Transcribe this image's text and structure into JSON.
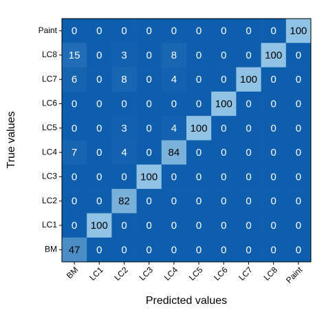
{
  "chart_data": {
    "type": "heatmap",
    "x_label": "Predicted values",
    "y_label": "True values",
    "x_categories": [
      "BM",
      "LC1",
      "LC2",
      "LC3",
      "LC4",
      "LC5",
      "LC6",
      "LC7",
      "LC8",
      "Paint"
    ],
    "y_categories": [
      "Paint",
      "LC8",
      "LC7",
      "LC6",
      "LC5",
      "LC4",
      "LC3",
      "LC2",
      "LC1",
      "BM"
    ],
    "values": [
      [
        0,
        0,
        0,
        0,
        0,
        0,
        0,
        0,
        0,
        100
      ],
      [
        15,
        0,
        3,
        0,
        8,
        0,
        0,
        0,
        100,
        0
      ],
      [
        6,
        0,
        8,
        0,
        4,
        0,
        0,
        100,
        0,
        0
      ],
      [
        0,
        0,
        0,
        0,
        0,
        0,
        100,
        0,
        0,
        0
      ],
      [
        0,
        0,
        3,
        0,
        4,
        100,
        0,
        0,
        0,
        0
      ],
      [
        7,
        0,
        4,
        0,
        84,
        0,
        0,
        0,
        0,
        0
      ],
      [
        0,
        0,
        0,
        100,
        0,
        0,
        0,
        0,
        0,
        0
      ],
      [
        0,
        0,
        82,
        0,
        0,
        0,
        0,
        0,
        0,
        0
      ],
      [
        0,
        100,
        0,
        0,
        0,
        0,
        0,
        0,
        0,
        0
      ],
      [
        47,
        0,
        0,
        0,
        0,
        0,
        0,
        0,
        0,
        0
      ]
    ],
    "colormap": [
      "#0d5ead",
      "#8fc2e4"
    ]
  }
}
